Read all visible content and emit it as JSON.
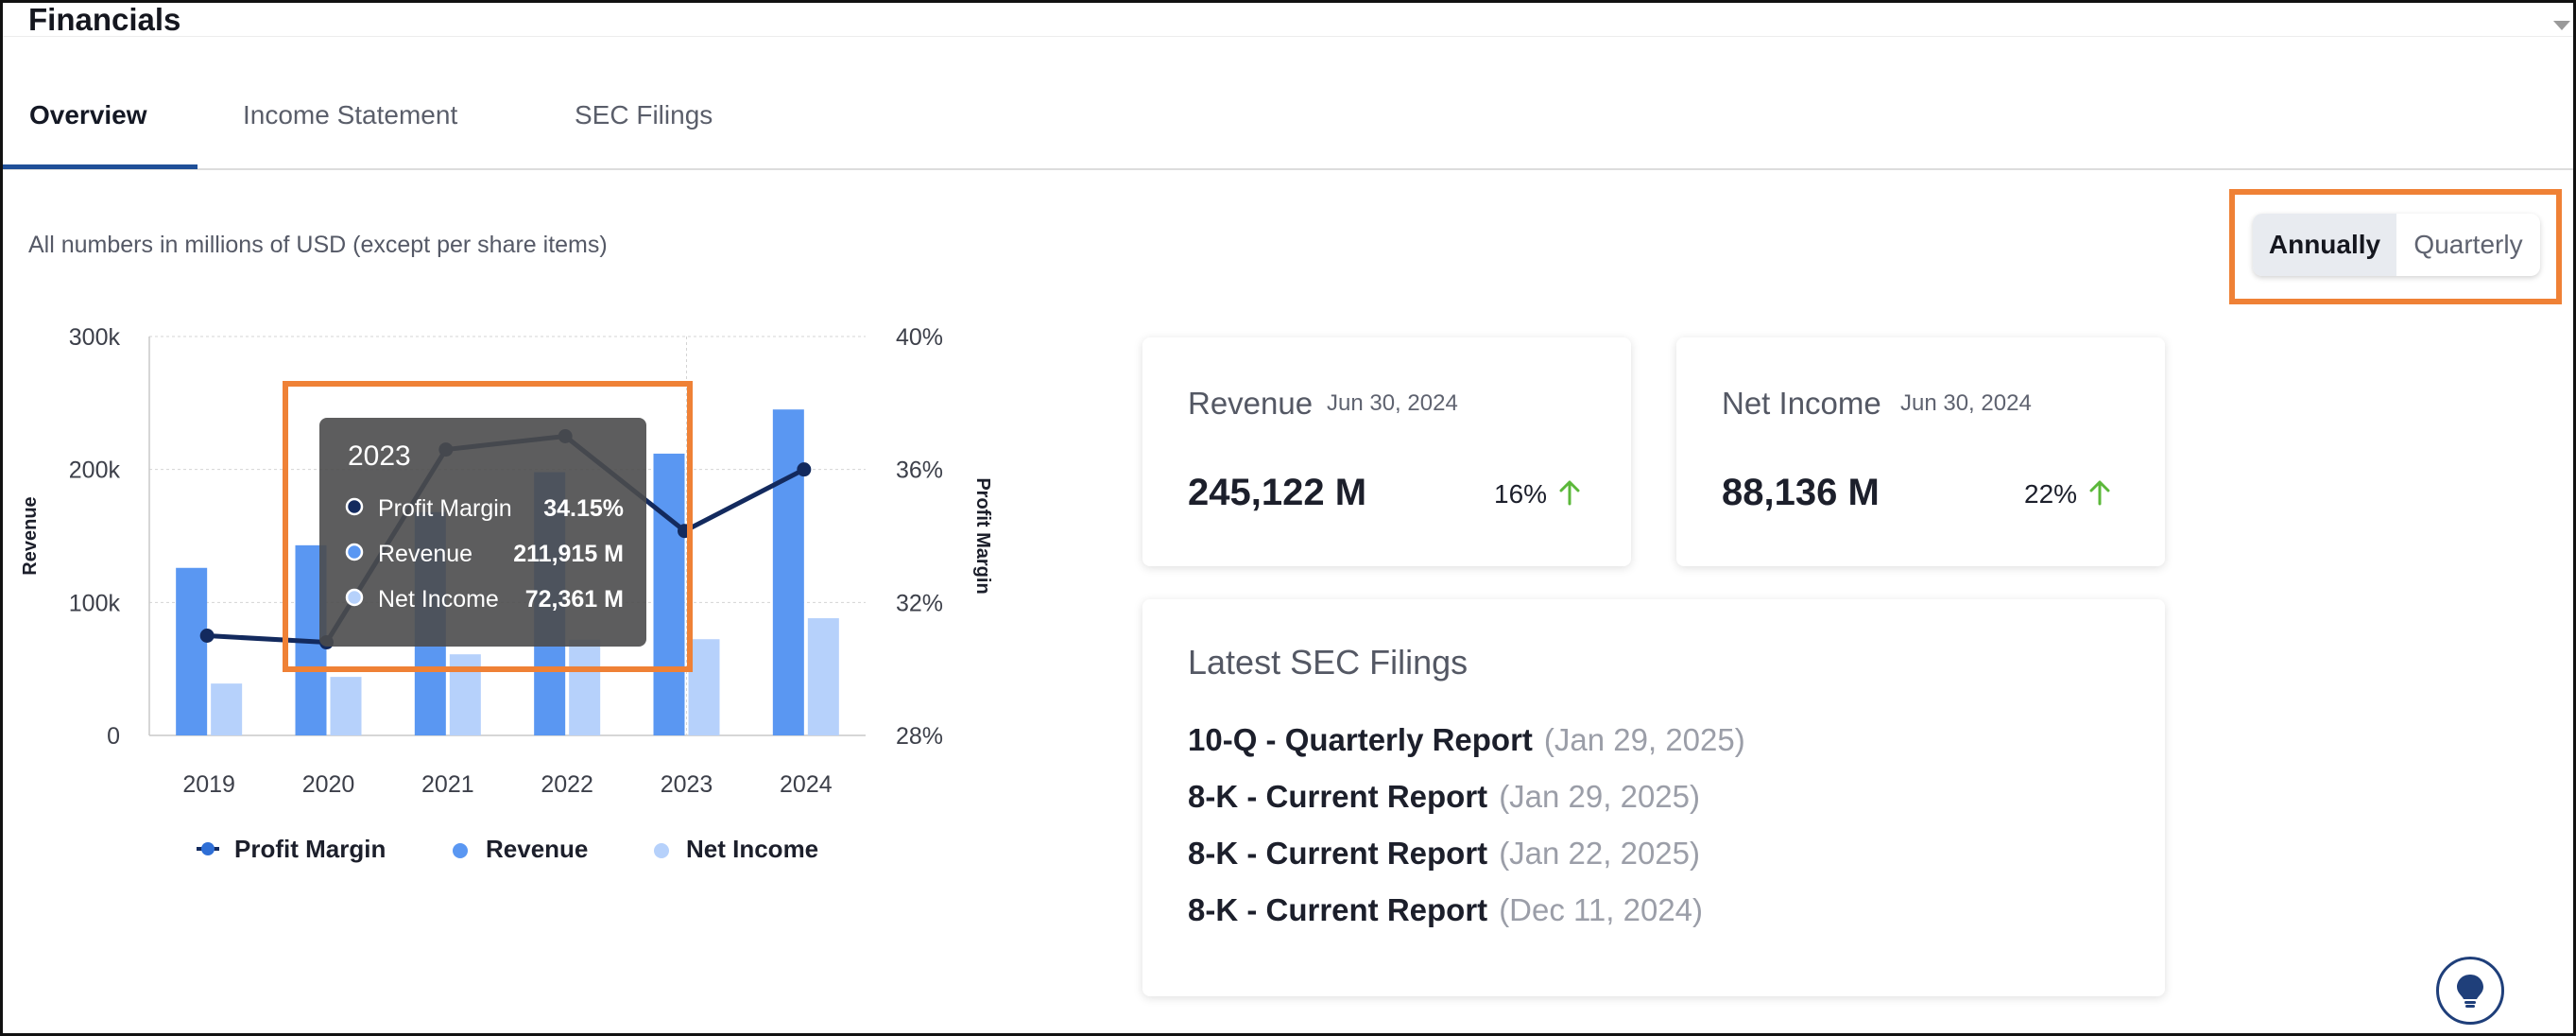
{
  "title": "Financials",
  "tabs": [
    {
      "label": "Overview",
      "active": true
    },
    {
      "label": "Income Statement",
      "active": false
    },
    {
      "label": "SEC Filings",
      "active": false
    }
  ],
  "note": "All numbers in millions of USD (except per share items)",
  "period_toggle": {
    "options": [
      "Annually",
      "Quarterly"
    ],
    "selected": "Annually"
  },
  "chart_data": {
    "type": "bar",
    "categories": [
      "2019",
      "2020",
      "2021",
      "2022",
      "2023",
      "2024"
    ],
    "series": [
      {
        "name": "Revenue",
        "type": "bar",
        "axis": "left",
        "color": "#5a97f2",
        "values": [
          126000,
          143000,
          168000,
          198000,
          211915,
          245122
        ]
      },
      {
        "name": "Net Income",
        "type": "bar",
        "axis": "left",
        "color": "#b6d1fb",
        "values": [
          39000,
          44000,
          61000,
          72000,
          72361,
          88136
        ]
      },
      {
        "name": "Profit Margin",
        "type": "line",
        "axis": "right",
        "color": "#132a5e",
        "values": [
          31.0,
          30.8,
          36.6,
          37.0,
          34.15,
          36.0
        ]
      }
    ],
    "ylabel": "Revenue",
    "y2label": "Profit Margin",
    "yticks": [
      "0",
      "100k",
      "200k",
      "300k"
    ],
    "y2ticks": [
      "28%",
      "32%",
      "36%",
      "40%"
    ],
    "ylim": [
      0,
      300000
    ],
    "y2lim": [
      28,
      40
    ],
    "grid": true,
    "legend": [
      "Profit Margin",
      "Revenue",
      "Net Income"
    ],
    "tooltip": {
      "title": "2023",
      "rows": [
        {
          "label": "Profit Margin",
          "value": "34.15%"
        },
        {
          "label": "Revenue",
          "value": "211,915 M"
        },
        {
          "label": "Net Income",
          "value": "72,361 M"
        }
      ]
    }
  },
  "cards": {
    "revenue": {
      "title": "Revenue",
      "date": "Jun 30, 2024",
      "value": "245,122 M",
      "pct": "16%",
      "trend": "up"
    },
    "net_income": {
      "title": "Net Income",
      "date": "Jun 30, 2024",
      "value": "88,136 M",
      "pct": "22%",
      "trend": "up"
    }
  },
  "filings": {
    "title": "Latest SEC Filings",
    "items": [
      {
        "name": "10-Q - Quarterly Report",
        "date": "(Jan 29, 2025)"
      },
      {
        "name": "8-K - Current Report",
        "date": "(Jan 29, 2025)"
      },
      {
        "name": "8-K - Current Report",
        "date": "(Jan 22, 2025)"
      },
      {
        "name": "8-K - Current Report",
        "date": "(Dec 11, 2024)"
      }
    ]
  },
  "colors": {
    "accent": "#1f4f98",
    "highlight_box": "#ef8136",
    "trend_up": "#5bb83a"
  },
  "icons": {
    "trend": "arrow-up-icon",
    "help": "lightbulb-icon"
  }
}
